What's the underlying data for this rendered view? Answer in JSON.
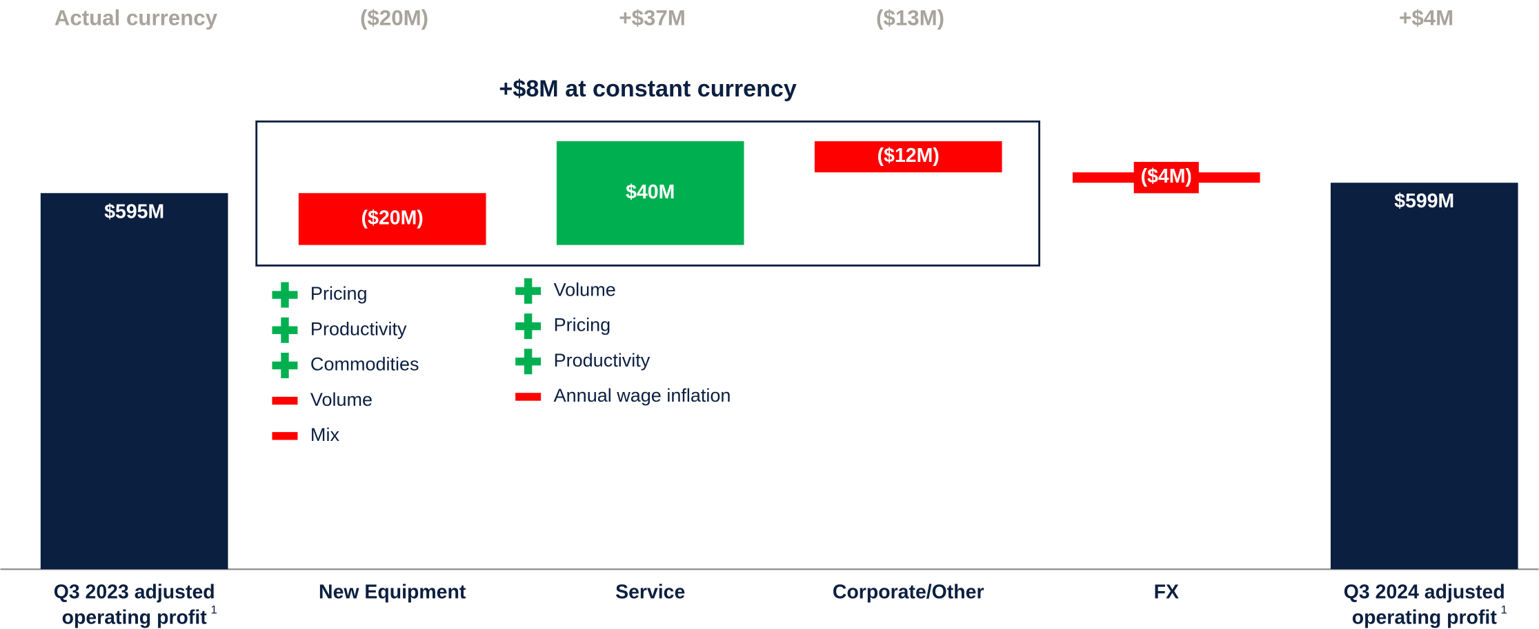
{
  "chart_data": {
    "type": "waterfall",
    "annotation": "+$8M at constant currency",
    "categories": [
      "Q3 2023 adjusted operating profit",
      "New Equipment",
      "Service",
      "Corporate/Other",
      "FX",
      "Q3 2024 adjusted operating profit"
    ],
    "category_footnotes": [
      "1",
      null,
      null,
      null,
      null,
      "1"
    ],
    "bar_kinds": [
      "total",
      "delta",
      "delta",
      "delta",
      "delta",
      "total"
    ],
    "values": [
      595,
      -20,
      40,
      -12,
      -4,
      599
    ],
    "value_labels": [
      "$595M",
      "($20M)",
      "$40M",
      "($12M)",
      "($4M)",
      "$599M"
    ],
    "colors": {
      "total": "#0b1f40",
      "increase": "#00b050",
      "decrease": "#ff0000"
    },
    "ylim": [
      450,
      660
    ],
    "actual_currency": {
      "name": "Actual currency",
      "values": [
        null,
        -20,
        37,
        -13,
        null,
        4
      ],
      "value_labels": [
        null,
        "($20M)",
        "+$37M",
        "($13M)",
        null,
        "+$4M"
      ]
    },
    "notes": [
      {
        "category": 1,
        "items": [
          {
            "sign": "+",
            "text": "Pricing"
          },
          {
            "sign": "+",
            "text": "Productivity"
          },
          {
            "sign": "+",
            "text": "Commodities"
          },
          {
            "sign": "-",
            "text": "Volume"
          },
          {
            "sign": "-",
            "text": "Mix"
          }
        ]
      },
      {
        "category": 2,
        "items": [
          {
            "sign": "+",
            "text": "Volume"
          },
          {
            "sign": "+",
            "text": "Pricing"
          },
          {
            "sign": "+",
            "text": "Productivity"
          },
          {
            "sign": "-",
            "text": "Annual wage inflation"
          }
        ]
      }
    ]
  }
}
